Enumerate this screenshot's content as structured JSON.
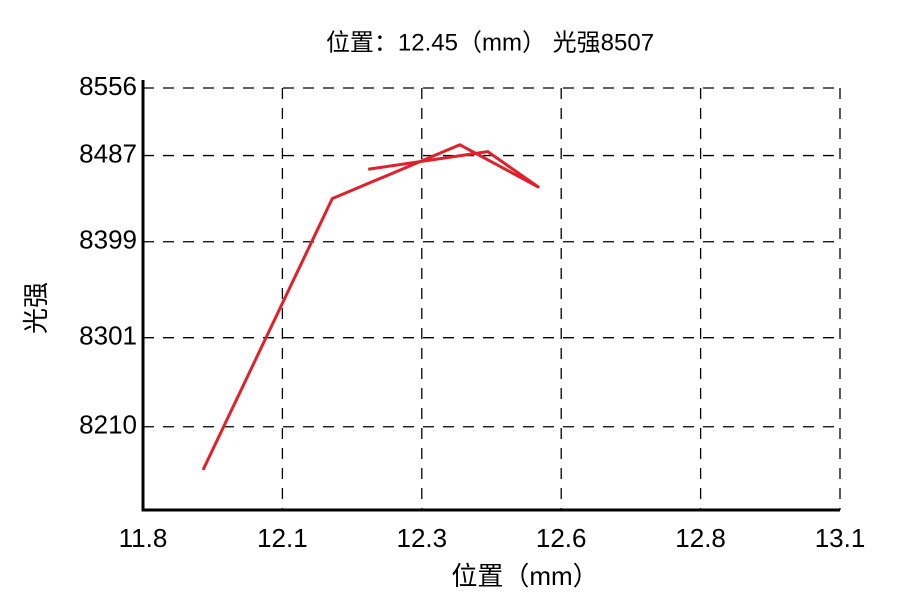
{
  "chart_data": {
    "type": "line",
    "title": "位置：12.45（mm） 光强8507",
    "x_label": "位置（mm）",
    "y_label": "光强",
    "x": [
      11.912,
      12.153,
      12.391,
      12.537,
      12.443,
      12.22
    ],
    "series": [
      {
        "color": "#e0202a",
        "values": [
          8166,
          8443,
          8498,
          8455,
          8491,
          8473
        ]
      }
    ],
    "xlim": [
      11.8,
      13.1
    ],
    "xticks": [
      {
        "value": 11.8,
        "label": "11.8"
      },
      {
        "value": 12.06,
        "label": "12.1"
      },
      {
        "value": 12.32,
        "label": "12.3"
      },
      {
        "value": 12.58,
        "label": "12.6"
      },
      {
        "value": 12.84,
        "label": "12.8"
      },
      {
        "value": 13.1,
        "label": "13.1"
      }
    ],
    "ylim": [
      8125,
      8556
    ],
    "yticks": [
      8210,
      8301,
      8399,
      8487,
      8556
    ],
    "grid": true
  }
}
